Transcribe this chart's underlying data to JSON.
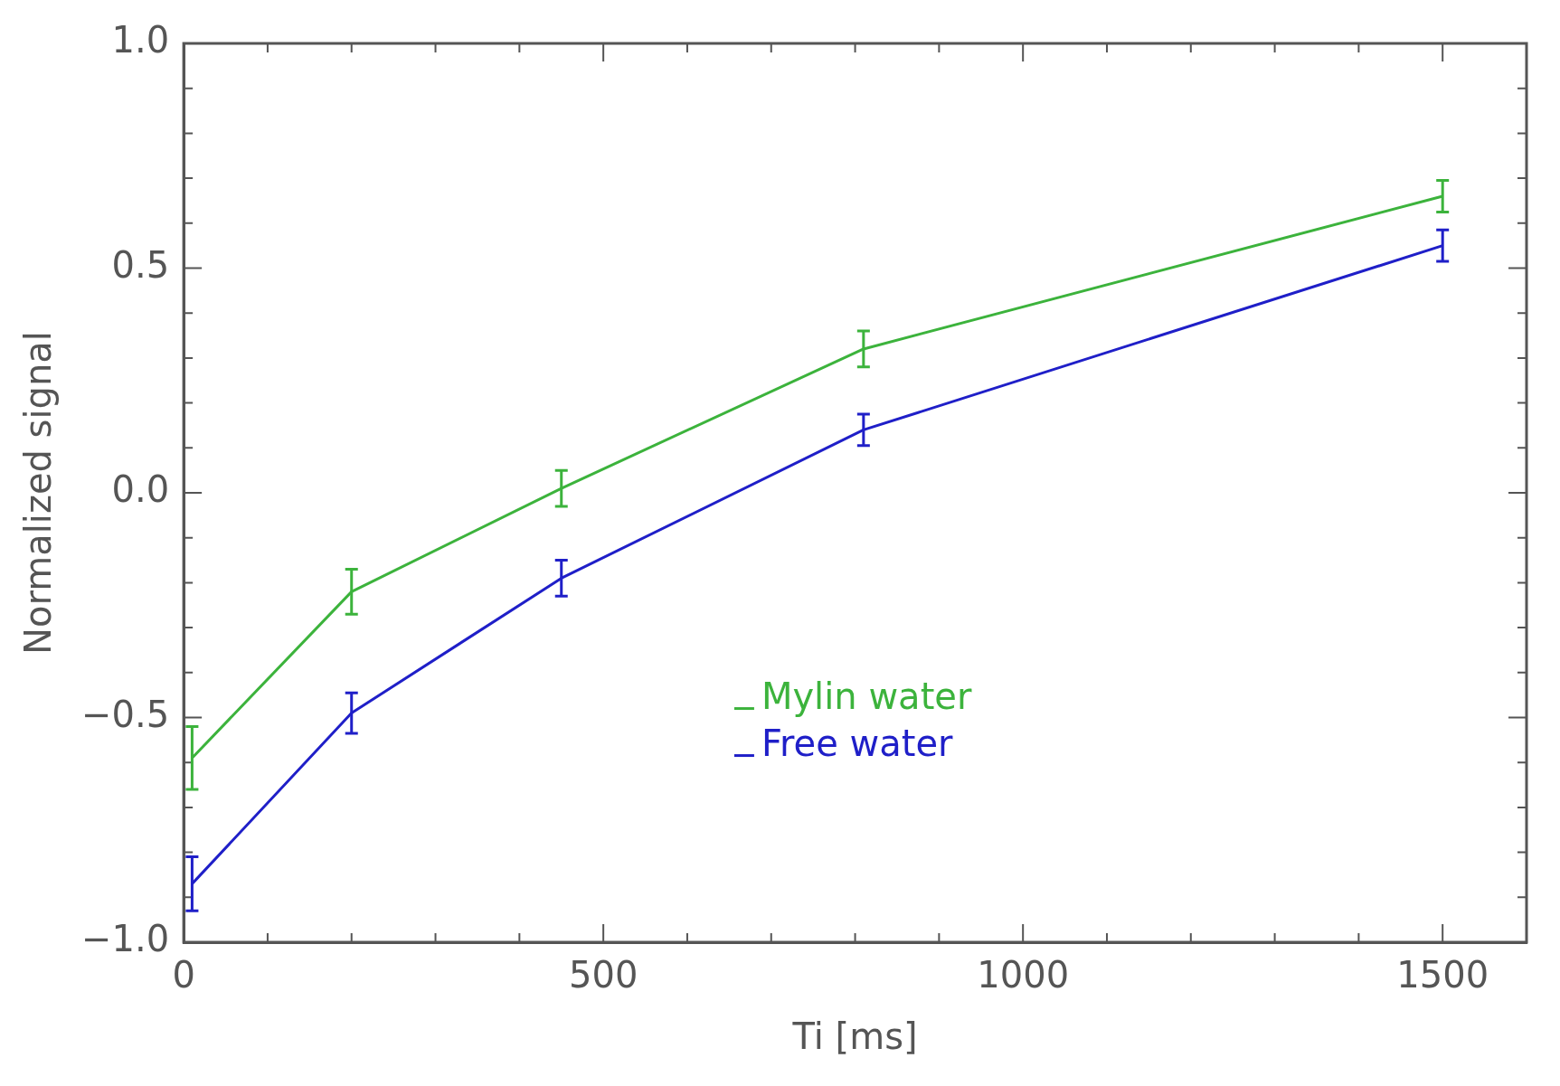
{
  "chart_data": {
    "type": "line",
    "xlabel": "Ti [ms]",
    "ylabel": "Normalized signal",
    "x": [
      10,
      200,
      450,
      810,
      1500
    ],
    "series": [
      {
        "name": "Mylin water",
        "color": "#3cb33c",
        "values": [
          -0.59,
          -0.22,
          0.01,
          0.32,
          0.66
        ],
        "errors": [
          0.07,
          0.05,
          0.04,
          0.04,
          0.035
        ]
      },
      {
        "name": "Free water",
        "color": "#1f1fc8",
        "values": [
          -0.87,
          -0.49,
          -0.19,
          0.14,
          0.55
        ],
        "errors": [
          0.06,
          0.045,
          0.04,
          0.035,
          0.035
        ]
      }
    ],
    "xlim": [
      0,
      1600
    ],
    "xticks": [
      0,
      {
        "value": 100,
        "label": null
      },
      {
        "value": 200,
        "label": null
      },
      {
        "value": 300,
        "label": null
      },
      {
        "value": 400,
        "label": null
      },
      500,
      {
        "value": 600,
        "label": null
      },
      {
        "value": 700,
        "label": null
      },
      {
        "value": 800,
        "label": null
      },
      {
        "value": 900,
        "label": null
      },
      1000,
      {
        "value": 1100,
        "label": null
      },
      {
        "value": 1200,
        "label": null
      },
      {
        "value": 1300,
        "label": null
      },
      {
        "value": 1400,
        "label": null
      },
      1500
    ],
    "ylim": [
      -1,
      1
    ],
    "yticks": [
      {
        "value": -1,
        "label": "−1.0"
      },
      {
        "value": -0.9,
        "label": null
      },
      {
        "value": -0.8,
        "label": null
      },
      {
        "value": -0.7,
        "label": null
      },
      {
        "value": -0.6,
        "label": null
      },
      {
        "value": -0.5,
        "label": "−0.5"
      },
      {
        "value": -0.4,
        "label": null
      },
      {
        "value": -0.3,
        "label": null
      },
      {
        "value": -0.2,
        "label": null
      },
      {
        "value": -0.1,
        "label": null
      },
      {
        "value": 0,
        "label": "0.0"
      },
      {
        "value": 0.1,
        "label": null
      },
      {
        "value": 0.2,
        "label": null
      },
      {
        "value": 0.3,
        "label": null
      },
      {
        "value": 0.4,
        "label": null
      },
      {
        "value": 0.5,
        "label": "0.5"
      },
      {
        "value": 0.6,
        "label": null
      },
      {
        "value": 0.7,
        "label": null
      },
      {
        "value": 0.8,
        "label": null
      },
      {
        "value": 0.9,
        "label": null
      },
      {
        "value": 1,
        "label": "1.0"
      }
    ],
    "grid": false,
    "legend": "bottom",
    "marker": "none",
    "line_style": "solid"
  }
}
